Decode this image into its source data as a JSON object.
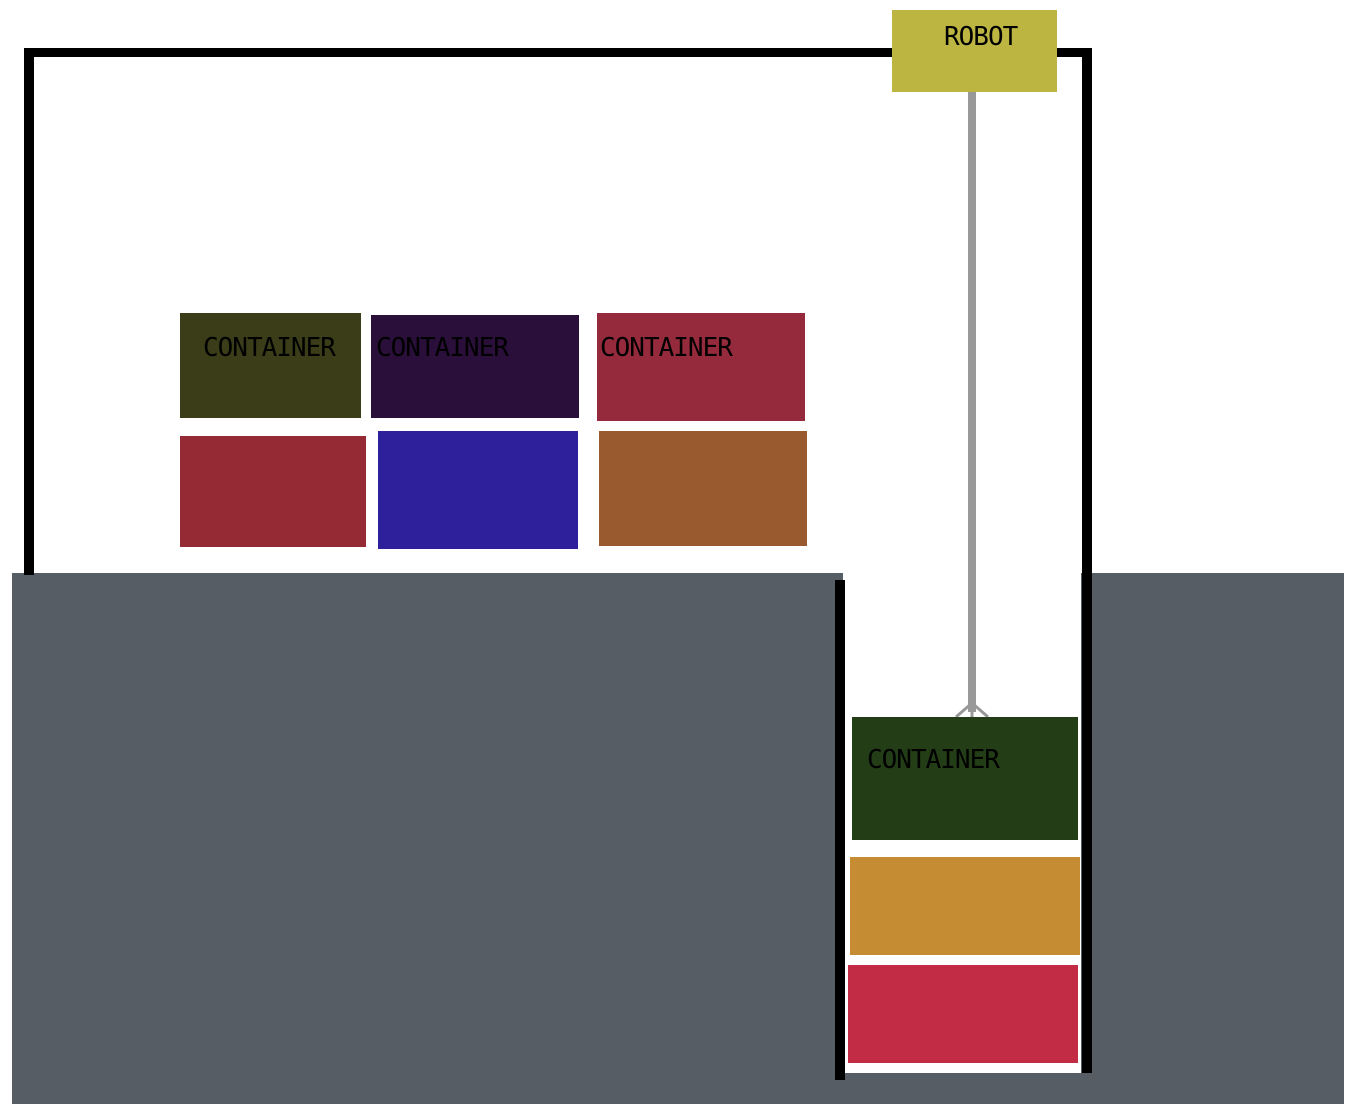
{
  "robot": {
    "label": "ROBOT",
    "color": "#bcb542",
    "cable_color": "#999999"
  },
  "ground_color": "#575d64",
  "containers": [
    {
      "label": "CONTAINER",
      "color": "#3a3d18"
    },
    {
      "label": "CONTAINER",
      "color": "#2a0f3a"
    },
    {
      "label": "CONTAINER",
      "color": "#952a3c"
    },
    {
      "label": "",
      "color": "#952a34"
    },
    {
      "label": "",
      "color": "#2e209a"
    },
    {
      "label": "",
      "color": "#995a2f"
    },
    {
      "label": "CONTAINER",
      "color": "#233d17"
    },
    {
      "label": "",
      "color": "#c68c34"
    },
    {
      "label": "",
      "color": "#c22c44"
    }
  ]
}
